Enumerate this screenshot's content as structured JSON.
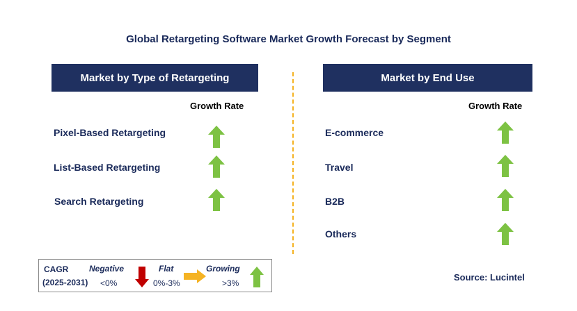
{
  "title": "Global Retargeting Software Market Growth Forecast by Segment",
  "left_panel": {
    "header": "Market by Type of Retargeting",
    "growth_label": "Growth Rate",
    "segments": [
      {
        "label": "Pixel-Based Retargeting",
        "trend": "growing"
      },
      {
        "label": "List-Based Retargeting",
        "trend": "growing"
      },
      {
        "label": "Search Retargeting",
        "trend": "growing"
      }
    ]
  },
  "right_panel": {
    "header": "Market by End Use",
    "growth_label": "Growth Rate",
    "segments": [
      {
        "label": "E-commerce",
        "trend": "growing"
      },
      {
        "label": "Travel",
        "trend": "growing"
      },
      {
        "label": "B2B",
        "trend": "growing"
      },
      {
        "label": "Others",
        "trend": "growing"
      }
    ]
  },
  "legend": {
    "cagr_label": "CAGR",
    "period": "(2025-2031)",
    "negative_label": "Negative",
    "negative_range": "<0%",
    "flat_label": "Flat",
    "flat_range": "0%-3%",
    "growing_label": "Growing",
    "growing_range": ">3%"
  },
  "source": "Source: Lucintel",
  "colors": {
    "header_bg": "#1f3060",
    "growing": "#7dc243",
    "flat": "#f5b323",
    "negative": "#c00000",
    "divider": "#f5b323"
  }
}
